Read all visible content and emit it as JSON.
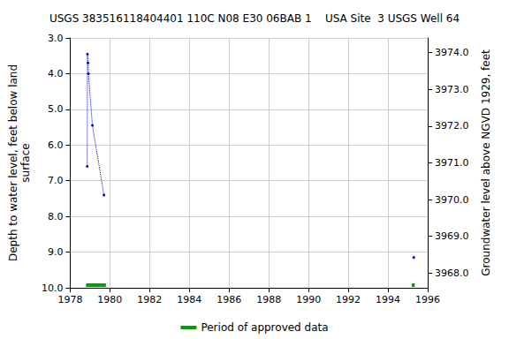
{
  "chart_data": {
    "type": "line",
    "title": "USGS 383516118404401 110C N08 E30 06BAB 1    USA Site  3 USGS Well 64",
    "y_label": "Depth to water level, feet below land\nsurface",
    "y2_label": "Groundwater level above NGVD 1929, feet",
    "x": [
      1978.86,
      1978.87,
      1978.9,
      1978.92,
      1979.12,
      1979.7,
      null,
      1995.3
    ],
    "values": [
      6.6,
      3.45,
      3.7,
      4.0,
      5.45,
      7.4,
      null,
      9.15
    ],
    "color": "#0000cc",
    "marker": "circle",
    "line_style": "dotted",
    "xlim": [
      1978,
      1996
    ],
    "xticks": [
      1978,
      1980,
      1982,
      1984,
      1986,
      1988,
      1990,
      1992,
      1994,
      1996
    ],
    "ylim": [
      10,
      3
    ],
    "yticks": [
      {
        "value": 3,
        "label": "3.0"
      },
      {
        "value": 4,
        "label": "4.0"
      },
      {
        "value": 5,
        "label": "5.0"
      },
      {
        "value": 6,
        "label": "6.0"
      },
      {
        "value": 7,
        "label": "7.0"
      },
      {
        "value": 8,
        "label": "8.0"
      },
      {
        "value": 9,
        "label": "9.0"
      },
      {
        "value": 10,
        "label": "10.0"
      }
    ],
    "y2lim": [
      3967.6,
      3974.4
    ],
    "y2ticks": [
      {
        "value": 3968,
        "label": "3968.0"
      },
      {
        "value": 3969,
        "label": "3969.0"
      },
      {
        "value": 3970,
        "label": "3970.0"
      },
      {
        "value": 3971,
        "label": "3971.0"
      },
      {
        "value": 3972,
        "label": "3972.0"
      },
      {
        "value": 3973,
        "label": "3973.0"
      },
      {
        "value": 3974,
        "label": "3974.0"
      }
    ],
    "periods": {
      "name": "Period of approved data",
      "color": "#00a000",
      "ranges": [
        [
          1978.8,
          1979.8
        ],
        [
          1995.2,
          1995.35
        ]
      ]
    },
    "grid": true,
    "legend": "bottom"
  }
}
